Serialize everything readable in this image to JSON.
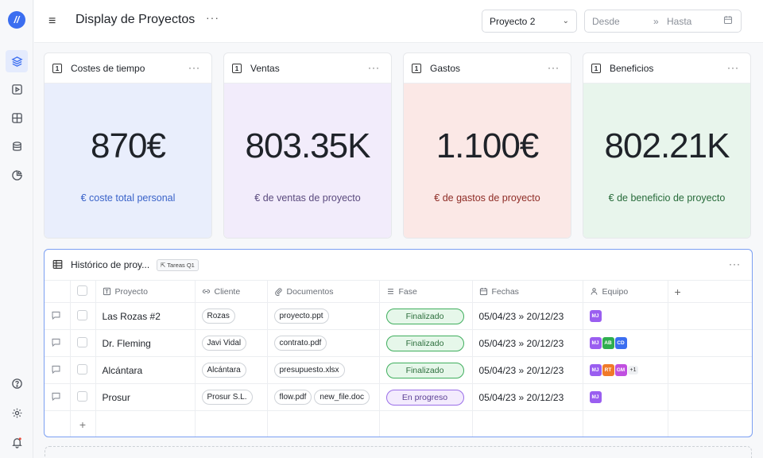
{
  "app": {
    "logo_text": "//"
  },
  "header": {
    "title": "Display de Proyectos",
    "more": "···",
    "project_select": "Proyecto 2",
    "date_from_placeholder": "Desde",
    "date_sep": "»",
    "date_to_placeholder": "Hasta"
  },
  "sidebar": {
    "items": [
      {
        "name": "layers-icon",
        "active": true
      },
      {
        "name": "play-icon",
        "active": false
      },
      {
        "name": "layout-icon",
        "active": false
      },
      {
        "name": "database-icon",
        "active": false
      },
      {
        "name": "chart-pie-icon",
        "active": false
      }
    ],
    "bottom": [
      "help-icon",
      "settings-icon",
      "notifications-icon"
    ]
  },
  "cards": [
    {
      "title": "Costes de tiempo",
      "value": "870€",
      "subtitle": "€ coste total personal",
      "bg": "#e9eefc",
      "sub_color": "#3a63c9"
    },
    {
      "title": "Ventas",
      "value": "803.35K",
      "subtitle": "€ de ventas de proyecto",
      "bg": "#f2ecfb",
      "sub_color": "#5a4a7e"
    },
    {
      "title": "Gastos",
      "value": "1.100€",
      "subtitle": "€ de gastos de proyecto",
      "bg": "#fbe8e6",
      "sub_color": "#8e2c26"
    },
    {
      "title": "Beneficios",
      "value": "802.21K",
      "subtitle": "€ de beneficio de proyecto",
      "bg": "#e8f5ec",
      "sub_color": "#276b3a"
    }
  ],
  "card_more": "···",
  "card_icon_label": "1",
  "panel": {
    "title": "Histórico de proy...",
    "tag": "⇱ Tareas Q1",
    "more": "···",
    "columns": [
      "Proyecto",
      "Cliente",
      "Documentos",
      "Fase",
      "Fechas",
      "Equipo"
    ],
    "add_column": "+",
    "add_row": "+",
    "rows": [
      {
        "proyecto": "Las Rozas #2",
        "cliente": "Rozas",
        "docs": [
          "proyecto.ppt"
        ],
        "fase": "Finalizado",
        "fase_type": "done",
        "fechas": "05/04/23 » 20/12/23",
        "equipo": [
          {
            "i": "MJ",
            "c": "#9a5ef0"
          }
        ],
        "extra": ""
      },
      {
        "proyecto": "Dr. Fleming",
        "cliente": "Javi Vidal",
        "docs": [
          "contrato.pdf"
        ],
        "fase": "Finalizado",
        "fase_type": "done",
        "fechas": "05/04/23 » 20/12/23",
        "equipo": [
          {
            "i": "MJ",
            "c": "#9a5ef0"
          },
          {
            "i": "AB",
            "c": "#2fae4f"
          },
          {
            "i": "CD",
            "c": "#3b6ef0"
          }
        ],
        "extra": ""
      },
      {
        "proyecto": "Alcántara",
        "cliente": "Alcántara",
        "docs": [
          "presupuesto.xlsx"
        ],
        "fase": "Finalizado",
        "fase_type": "done",
        "fechas": "05/04/23 » 20/12/23",
        "equipo": [
          {
            "i": "MJ",
            "c": "#9a5ef0"
          },
          {
            "i": "RT",
            "c": "#f07a2a"
          },
          {
            "i": "GM",
            "c": "#c04fe0"
          }
        ],
        "extra": "+1"
      },
      {
        "proyecto": "Prosur",
        "cliente": "Prosur S.L.",
        "docs": [
          "flow.pdf",
          "new_file.doc"
        ],
        "fase": "En progreso",
        "fase_type": "prog",
        "fechas": "05/04/23 » 20/12/23",
        "equipo": [
          {
            "i": "MJ",
            "c": "#9a5ef0"
          }
        ],
        "extra": ""
      }
    ]
  }
}
